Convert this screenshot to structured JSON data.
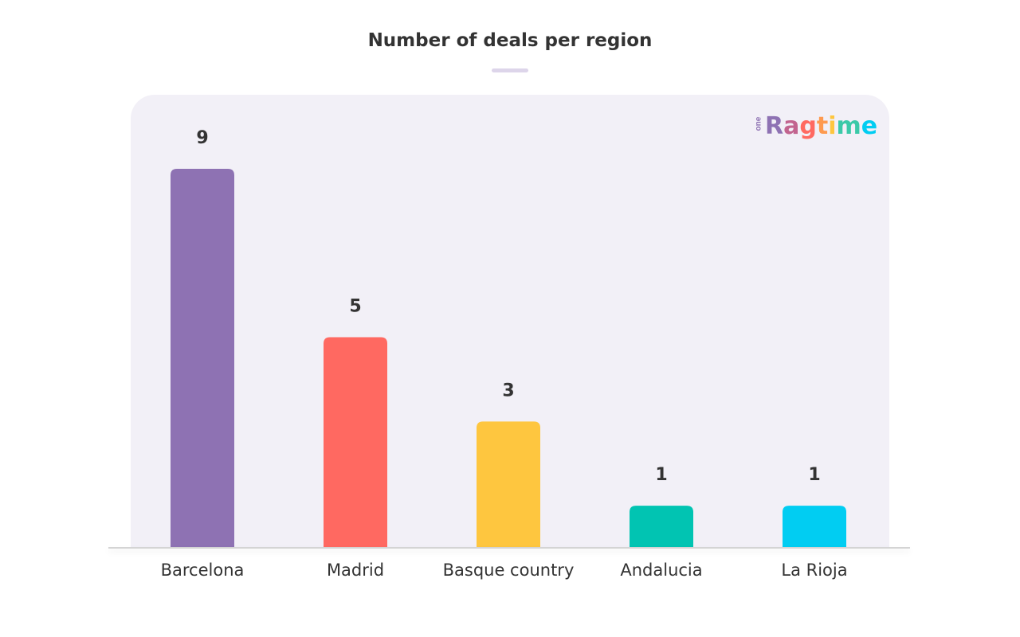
{
  "chart_data": {
    "type": "bar",
    "title": "Number of deals per region",
    "categories": [
      "Barcelona",
      "Madrid",
      "Basque country",
      "Andalucia",
      "La Rioja"
    ],
    "values": [
      9,
      5,
      3,
      1,
      1
    ],
    "colors": [
      "#8e72b3",
      "#ff6961",
      "#fec63f",
      "#01c4b2",
      "#01cdf2"
    ],
    "xlabel": "",
    "ylabel": "",
    "ylim": [
      0,
      9
    ],
    "grid": false,
    "legend": "none",
    "data_labels": true
  },
  "brand": {
    "logo_prefix": "one",
    "logo_word": "Ragtime",
    "logo_letters": [
      "R",
      "a",
      "g",
      "t",
      "i",
      "m",
      "e"
    ],
    "logo_letter_colors": [
      "#8e72b3",
      "#c2648f",
      "#ff6961",
      "#fe9a4f",
      "#fec63f",
      "#3bc9a8",
      "#01cdf2"
    ]
  }
}
